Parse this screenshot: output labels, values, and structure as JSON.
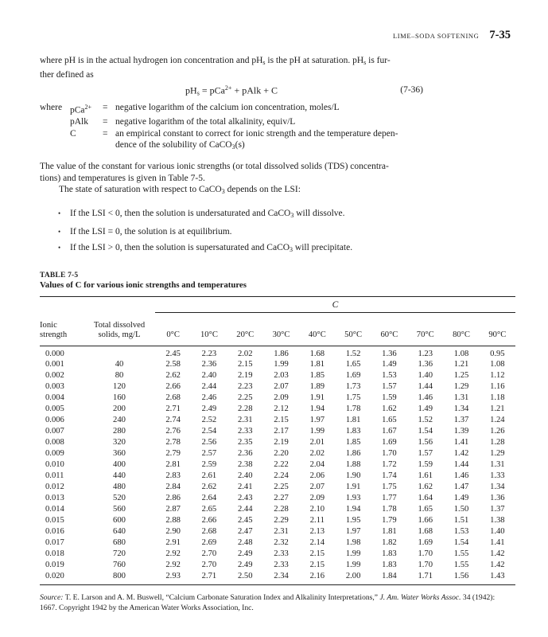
{
  "running_head": {
    "section": "LIME–SODA SOFTENING",
    "page_number": "7-35"
  },
  "intro": {
    "line1": [
      {
        "t": "where pH is in the actual hydrogen ion concentration and pH"
      },
      {
        "t": "s",
        "sub": true
      },
      {
        "t": " is the pH at saturation. pH"
      },
      {
        "t": "s",
        "sub": true
      },
      {
        "t": " is fur-"
      }
    ],
    "line2": [
      {
        "t": "ther defined as"
      }
    ]
  },
  "equation": {
    "body": [
      {
        "t": "pH"
      },
      {
        "t": "s",
        "sub": true
      },
      {
        "t": " = pCa"
      },
      {
        "t": "2+",
        "sup": true
      },
      {
        "t": " + pAlk + C"
      }
    ],
    "number": "(7-36)"
  },
  "where_block": {
    "lead": "where",
    "eq_sign": "=",
    "rows": [
      {
        "term": [
          {
            "t": "pCa"
          },
          {
            "t": "2+",
            "sup": true
          }
        ],
        "def": [
          {
            "t": "negative logarithm of the calcium ion concentration, moles/L"
          }
        ]
      },
      {
        "term": [
          {
            "t": "pAlk"
          }
        ],
        "def": [
          {
            "t": "negative logarithm of the total alkalinity, equiv/L"
          }
        ]
      },
      {
        "term": [
          {
            "t": "C"
          }
        ],
        "def": [
          {
            "t": "an empirical constant to correct for ionic strength and the temperature depen-"
          }
        ],
        "def2": [
          {
            "t": "dence of the solubility of CaCO"
          },
          {
            "t": "3",
            "sub": true
          },
          {
            "t": "(s)"
          }
        ]
      }
    ]
  },
  "paragraph2": {
    "line1": [
      {
        "t": "The value of the constant for various ionic strengths (or total dissolved solids (TDS) concentra-"
      }
    ],
    "line2": [
      {
        "t": "tions) and temperatures is given in Table 7-5."
      }
    ],
    "line3": [
      {
        "t": "The state of saturation with respect to CaCO"
      },
      {
        "t": "3",
        "sub": true
      },
      {
        "t": " depends on the LSI:"
      }
    ]
  },
  "bullets": {
    "marker": "•",
    "items": [
      [
        {
          "t": "If the LSI < 0, then the solution is undersaturated and CaCO"
        },
        {
          "t": "3",
          "sub": true
        },
        {
          "t": " will dissolve."
        }
      ],
      [
        {
          "t": "If the LSI = 0, the solution is at equilibrium."
        }
      ],
      [
        {
          "t": "If the LSI > 0, then the solution is supersaturated and CaCO"
        },
        {
          "t": "3",
          "sub": true
        },
        {
          "t": " will precipitate."
        }
      ]
    ]
  },
  "table": {
    "label": "TABLE 7-5",
    "caption": "Values of C for various ionic strengths and temperatures",
    "spanner": "C",
    "col_headers": {
      "ionic": [
        "Ionic",
        "strength"
      ],
      "tds": [
        "Total dissolved",
        "solids, mg/L"
      ],
      "temps": [
        "0°C",
        "10°C",
        "20°C",
        "30°C",
        "40°C",
        "50°C",
        "60°C",
        "70°C",
        "80°C",
        "90°C"
      ]
    },
    "rows": [
      {
        "ionic": "0.000",
        "tds": "",
        "values": [
          "2.45",
          "2.23",
          "2.02",
          "1.86",
          "1.68",
          "1.52",
          "1.36",
          "1.23",
          "1.08",
          "0.95"
        ]
      },
      {
        "ionic": "0.001",
        "tds": "40",
        "values": [
          "2.58",
          "2.36",
          "2.15",
          "1.99",
          "1.81",
          "1.65",
          "1.49",
          "1.36",
          "1.21",
          "1.08"
        ]
      },
      {
        "ionic": "0.002",
        "tds": "80",
        "values": [
          "2.62",
          "2.40",
          "2.19",
          "2.03",
          "1.85",
          "1.69",
          "1.53",
          "1.40",
          "1.25",
          "1.12"
        ]
      },
      {
        "ionic": "0.003",
        "tds": "120",
        "values": [
          "2.66",
          "2.44",
          "2.23",
          "2.07",
          "1.89",
          "1.73",
          "1.57",
          "1.44",
          "1.29",
          "1.16"
        ]
      },
      {
        "ionic": "0.004",
        "tds": "160",
        "values": [
          "2.68",
          "2.46",
          "2.25",
          "2.09",
          "1.91",
          "1.75",
          "1.59",
          "1.46",
          "1.31",
          "1.18"
        ]
      },
      {
        "ionic": "0.005",
        "tds": "200",
        "values": [
          "2.71",
          "2.49",
          "2.28",
          "2.12",
          "1.94",
          "1.78",
          "1.62",
          "1.49",
          "1.34",
          "1.21"
        ]
      },
      {
        "ionic": "0.006",
        "tds": "240",
        "values": [
          "2.74",
          "2.52",
          "2.31",
          "2.15",
          "1.97",
          "1.81",
          "1.65",
          "1.52",
          "1.37",
          "1.24"
        ]
      },
      {
        "ionic": "0.007",
        "tds": "280",
        "values": [
          "2.76",
          "2.54",
          "2.33",
          "2.17",
          "1.99",
          "1.83",
          "1.67",
          "1.54",
          "1.39",
          "1.26"
        ]
      },
      {
        "ionic": "0.008",
        "tds": "320",
        "values": [
          "2.78",
          "2.56",
          "2.35",
          "2.19",
          "2.01",
          "1.85",
          "1.69",
          "1.56",
          "1.41",
          "1.28"
        ]
      },
      {
        "ionic": "0.009",
        "tds": "360",
        "values": [
          "2.79",
          "2.57",
          "2.36",
          "2.20",
          "2.02",
          "1.86",
          "1.70",
          "1.57",
          "1.42",
          "1.29"
        ]
      },
      {
        "ionic": "0.010",
        "tds": "400",
        "values": [
          "2.81",
          "2.59",
          "2.38",
          "2.22",
          "2.04",
          "1.88",
          "1.72",
          "1.59",
          "1.44",
          "1.31"
        ]
      },
      {
        "ionic": "0.011",
        "tds": "440",
        "values": [
          "2.83",
          "2.61",
          "2.40",
          "2.24",
          "2.06",
          "1.90",
          "1.74",
          "1.61",
          "1.46",
          "1.33"
        ]
      },
      {
        "ionic": "0.012",
        "tds": "480",
        "values": [
          "2.84",
          "2.62",
          "2.41",
          "2.25",
          "2.07",
          "1.91",
          "1.75",
          "1.62",
          "1.47",
          "1.34"
        ]
      },
      {
        "ionic": "0.013",
        "tds": "520",
        "values": [
          "2.86",
          "2.64",
          "2.43",
          "2.27",
          "2.09",
          "1.93",
          "1.77",
          "1.64",
          "1.49",
          "1.36"
        ]
      },
      {
        "ionic": "0.014",
        "tds": "560",
        "values": [
          "2.87",
          "2.65",
          "2.44",
          "2.28",
          "2.10",
          "1.94",
          "1.78",
          "1.65",
          "1.50",
          "1.37"
        ]
      },
      {
        "ionic": "0.015",
        "tds": "600",
        "values": [
          "2.88",
          "2.66",
          "2.45",
          "2.29",
          "2.11",
          "1.95",
          "1.79",
          "1.66",
          "1.51",
          "1.38"
        ]
      },
      {
        "ionic": "0.016",
        "tds": "640",
        "values": [
          "2.90",
          "2.68",
          "2.47",
          "2.31",
          "2.13",
          "1.97",
          "1.81",
          "1.68",
          "1.53",
          "1.40"
        ]
      },
      {
        "ionic": "0.017",
        "tds": "680",
        "values": [
          "2.91",
          "2.69",
          "2.48",
          "2.32",
          "2.14",
          "1.98",
          "1.82",
          "1.69",
          "1.54",
          "1.41"
        ]
      },
      {
        "ionic": "0.018",
        "tds": "720",
        "values": [
          "2.92",
          "2.70",
          "2.49",
          "2.33",
          "2.15",
          "1.99",
          "1.83",
          "1.70",
          "1.55",
          "1.42"
        ]
      },
      {
        "ionic": "0.019",
        "tds": "760",
        "values": [
          "2.92",
          "2.70",
          "2.49",
          "2.33",
          "2.15",
          "1.99",
          "1.83",
          "1.70",
          "1.55",
          "1.42"
        ]
      },
      {
        "ionic": "0.020",
        "tds": "800",
        "values": [
          "2.93",
          "2.71",
          "2.50",
          "2.34",
          "2.16",
          "2.00",
          "1.84",
          "1.71",
          "1.56",
          "1.43"
        ]
      }
    ]
  },
  "source": {
    "line1": [
      {
        "t": "Source:",
        "i": true
      },
      {
        "t": " T. E. Larson and A. M. Buswell, “Calcium Carbonate Saturation Index and Alkalinity Interpretations,” "
      },
      {
        "t": "J. Am. Water Works Assoc.",
        "i": true
      },
      {
        "t": " 34 (1942):"
      }
    ],
    "line2": [
      {
        "t": "1667. Copyright 1942 by the American Water Works Association, Inc."
      }
    ]
  }
}
